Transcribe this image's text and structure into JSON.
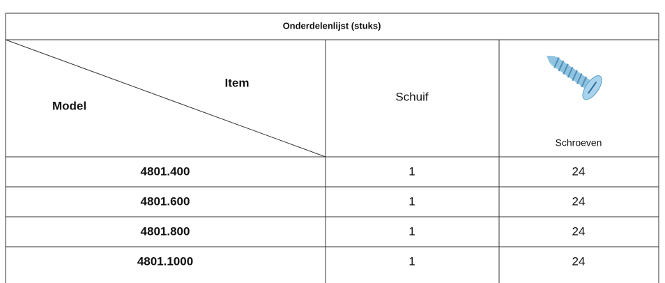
{
  "header": {
    "title": "Onderdelenlijst (stuks)",
    "item": "Item",
    "model": "Model",
    "columns": [
      "Schuif",
      "Schroeven"
    ]
  },
  "table": {
    "rows": [
      [
        "4801.400",
        1,
        24
      ],
      [
        "4801.600",
        1,
        24
      ],
      [
        "4801.800",
        1,
        24
      ],
      [
        "4801.1000",
        1,
        24
      ]
    ]
  }
}
